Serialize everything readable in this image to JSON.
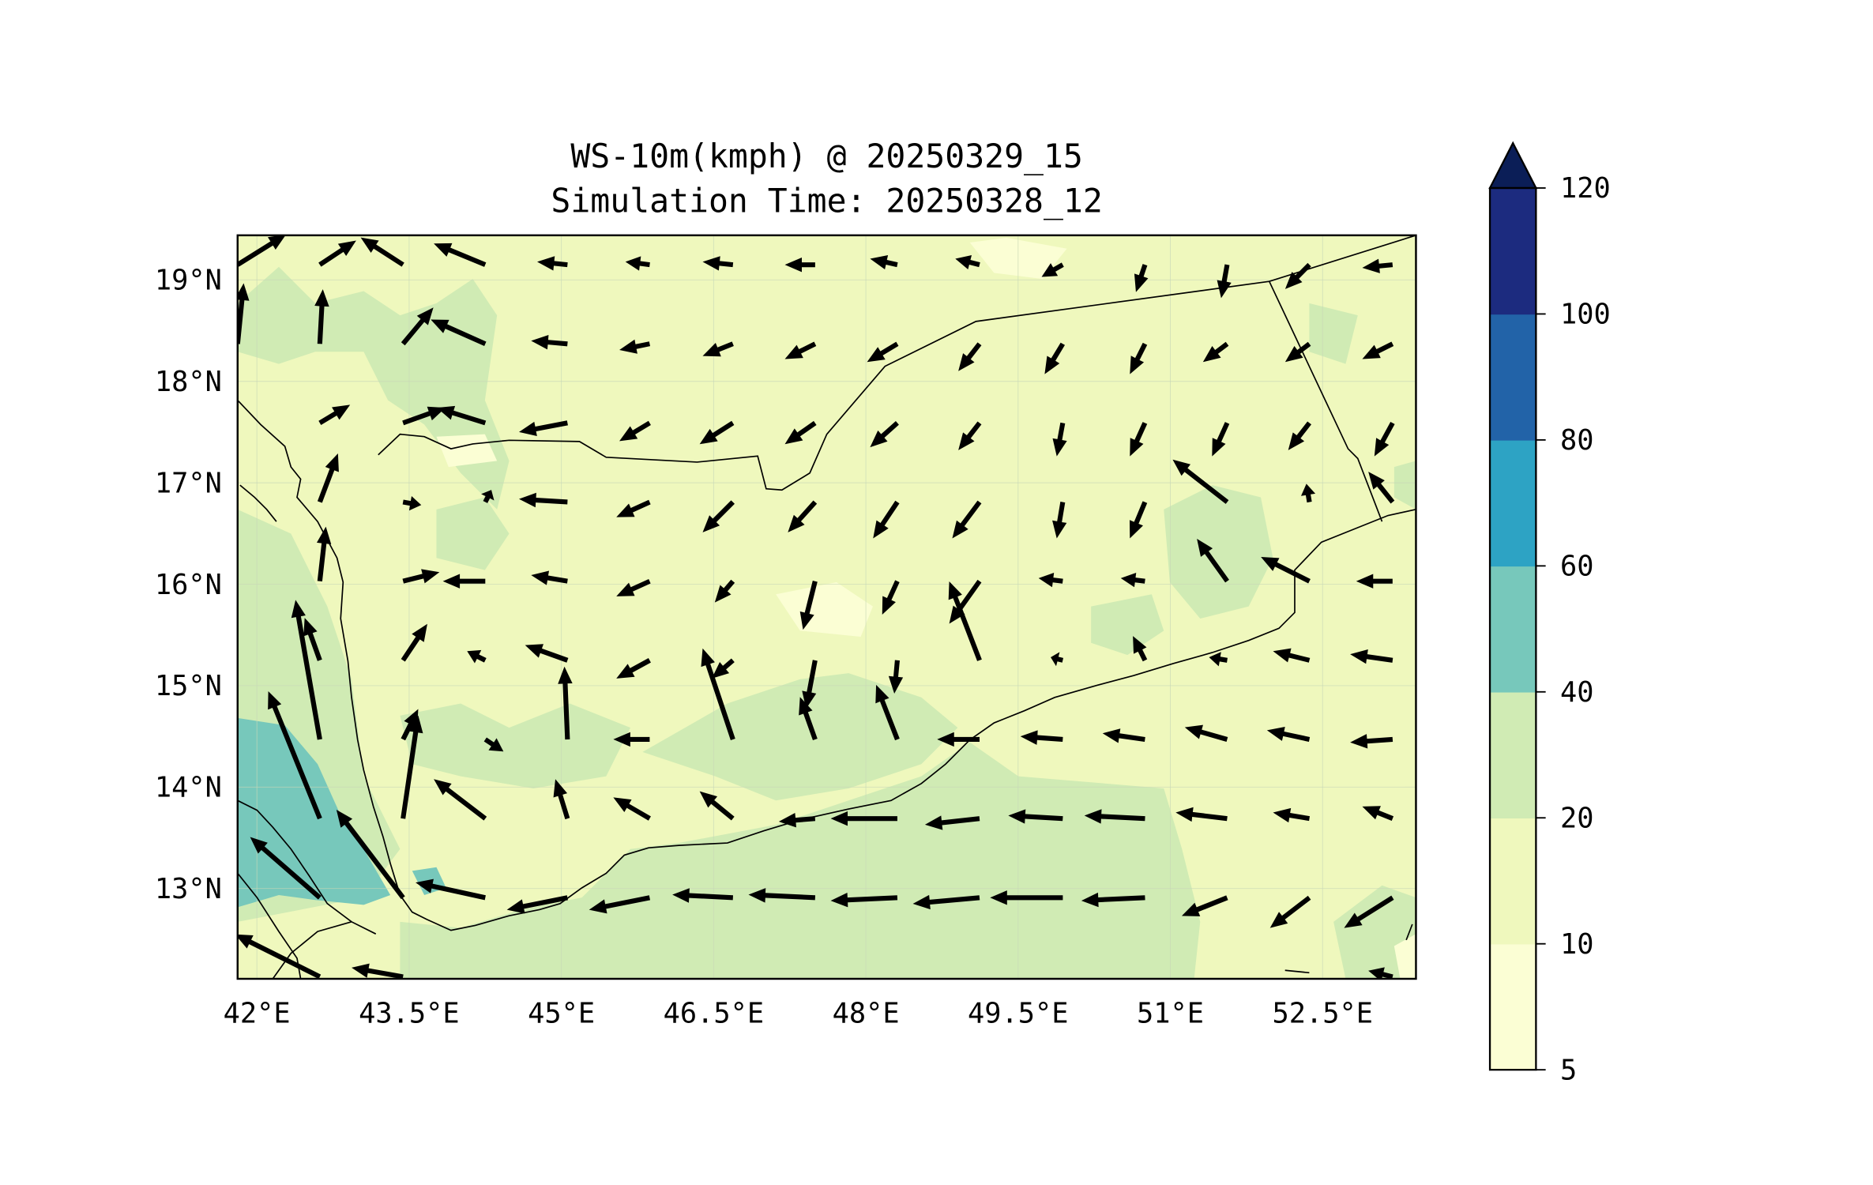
{
  "title": {
    "line1": "WS-10m(kmph) @ 20250329_15",
    "line2": "Simulation Time: 20250328_12"
  },
  "axes": {
    "lon_ticks": [
      {
        "value": 42.0,
        "label": "42°E"
      },
      {
        "value": 43.5,
        "label": "43.5°E"
      },
      {
        "value": 45.0,
        "label": "45°E"
      },
      {
        "value": 46.5,
        "label": "46.5°E"
      },
      {
        "value": 48.0,
        "label": "48°E"
      },
      {
        "value": 49.5,
        "label": "49.5°E"
      },
      {
        "value": 51.0,
        "label": "51°E"
      },
      {
        "value": 52.5,
        "label": "52.5°E"
      }
    ],
    "lat_ticks": [
      {
        "value": 19,
        "label": "19°N"
      },
      {
        "value": 18,
        "label": "18°N"
      },
      {
        "value": 17,
        "label": "17°N"
      },
      {
        "value": 16,
        "label": "16°N"
      },
      {
        "value": 15,
        "label": "15°N"
      },
      {
        "value": 14,
        "label": "14°N"
      },
      {
        "value": 13,
        "label": "13°N"
      }
    ],
    "lon_range": [
      41.81,
      53.42
    ],
    "lat_range": [
      12.11,
      19.44
    ]
  },
  "colorbar": {
    "levels": [
      5,
      10,
      20,
      40,
      60,
      80,
      100,
      120
    ],
    "labels": [
      "5",
      "10",
      "20",
      "40",
      "60",
      "80",
      "100",
      "120"
    ],
    "colors": [
      "#fbfed4",
      "#eff8bd",
      "#d0ebb4",
      "#77c8bb",
      "#2da3c4",
      "#2263a8",
      "#1c2b7f"
    ],
    "extend_color": "#0b1e57",
    "extend": "max"
  },
  "colors": {
    "background_field": "#eff8bd",
    "light_field": "#fbfed4",
    "medium_field": "#d0ebb4",
    "strong_field": "#77c8bb",
    "arrow": "#000000"
  },
  "wind_vectors": {
    "units": "kmph",
    "grid_lons": [
      41.81,
      42.62,
      43.44,
      44.25,
      45.06,
      45.87,
      46.69,
      47.5,
      48.31,
      49.12,
      49.94,
      50.75,
      51.56,
      52.37,
      53.19
    ],
    "grid_lats": [
      19.15,
      18.37,
      17.59,
      16.81,
      16.03,
      15.25,
      14.47,
      13.69,
      12.91,
      12.13
    ],
    "uv": [
      [
        [
          16,
          10
        ],
        [
          12,
          8
        ],
        [
          -14,
          9
        ],
        [
          -17,
          7
        ],
        [
          -10,
          1
        ],
        [
          -8,
          1
        ],
        [
          -10,
          1
        ],
        [
          -10,
          0
        ],
        [
          -9,
          2
        ],
        [
          -8,
          2
        ],
        [
          -7,
          -4
        ],
        [
          -3,
          -9
        ],
        [
          -2,
          -11
        ],
        [
          -8,
          -8
        ],
        [
          -10,
          -1
        ]
      ],
      [
        [
          2,
          20
        ],
        [
          1,
          18
        ],
        [
          10,
          12
        ],
        [
          -18,
          8
        ],
        [
          -12,
          1
        ],
        [
          -10,
          -2
        ],
        [
          -10,
          -4
        ],
        [
          -10,
          -5
        ],
        [
          -10,
          -6
        ],
        [
          -7,
          -9
        ],
        [
          -6,
          -10
        ],
        [
          -5,
          -10
        ],
        [
          -8,
          -6
        ],
        [
          -8,
          -6
        ],
        [
          -10,
          -5
        ]
      ],
      [
        null,
        [
          10,
          6
        ],
        [
          14,
          5
        ],
        [
          -16,
          5
        ],
        [
          -16,
          -3
        ],
        [
          -10,
          -6
        ],
        [
          -11,
          -7
        ],
        [
          -10,
          -7
        ],
        [
          -9,
          -8
        ],
        [
          -7,
          -9
        ],
        [
          -2,
          -11
        ],
        [
          -5,
          -11
        ],
        [
          -5,
          -11
        ],
        [
          -7,
          -9
        ],
        [
          -6,
          -11
        ]
      ],
      [
        null,
        [
          6,
          16
        ],
        [
          6,
          -1
        ],
        [
          2,
          4
        ],
        [
          -16,
          1
        ],
        [
          -11,
          -5
        ],
        [
          -10,
          -10
        ],
        [
          -9,
          -10
        ],
        [
          -8,
          -12
        ],
        [
          -9,
          -12
        ],
        [
          -2,
          -12
        ],
        [
          -5,
          -12
        ],
        [
          -18,
          14
        ],
        [
          -1,
          6
        ],
        [
          -8,
          10
        ]
      ],
      [
        null,
        [
          2,
          18
        ],
        [
          12,
          3
        ],
        [
          -14,
          0
        ],
        [
          -12,
          2
        ],
        [
          -11,
          -5
        ],
        [
          -6,
          -7
        ],
        [
          -4,
          -16
        ],
        [
          -5,
          -11
        ],
        [
          -10,
          -14
        ],
        [
          -8,
          1
        ],
        [
          -8,
          1
        ],
        [
          -10,
          14
        ],
        [
          -16,
          8
        ],
        [
          -12,
          0
        ]
      ],
      [
        null,
        [
          -5,
          14
        ],
        [
          8,
          12
        ],
        [
          -6,
          3
        ],
        [
          -14,
          5
        ],
        [
          -11,
          -6
        ],
        [
          -7,
          -6
        ],
        [
          -3,
          -16
        ],
        [
          -1,
          -11
        ],
        [
          -10,
          26
        ],
        [
          -4,
          1
        ],
        [
          -4,
          8
        ],
        [
          -6,
          1
        ],
        [
          -12,
          3
        ],
        [
          -14,
          2
        ]
      ],
      [
        null,
        [
          -8,
          46
        ],
        [
          5,
          10
        ],
        [
          6,
          -4
        ],
        [
          -1,
          24
        ],
        [
          -12,
          0
        ],
        [
          -10,
          30
        ],
        [
          -5,
          14
        ],
        [
          -7,
          18
        ],
        [
          -14,
          0
        ],
        [
          -14,
          1
        ],
        [
          -14,
          2
        ],
        [
          -14,
          4
        ],
        [
          -14,
          3
        ],
        [
          -14,
          -1
        ]
      ],
      [
        null,
        [
          -17,
          42
        ],
        [
          5,
          34
        ],
        [
          -17,
          13
        ],
        [
          -4,
          13
        ],
        [
          -12,
          7
        ],
        [
          -11,
          9
        ],
        [
          -12,
          -1
        ],
        [
          -22,
          0
        ],
        [
          -18,
          -2
        ],
        [
          -18,
          1
        ],
        [
          -20,
          1
        ],
        [
          -17,
          2
        ],
        [
          -12,
          2
        ],
        [
          -10,
          4
        ]
      ],
      [
        null,
        [
          -23,
          20
        ],
        [
          -22,
          29
        ],
        [
          -23,
          5
        ],
        [
          -20,
          -4
        ],
        [
          -20,
          -4
        ],
        [
          -20,
          1
        ],
        [
          -22,
          1
        ],
        [
          -22,
          -1
        ],
        [
          -22,
          -2
        ],
        [
          -24,
          0
        ],
        [
          -21,
          -1
        ],
        [
          -15,
          -6
        ],
        [
          -13,
          -10
        ],
        [
          -16,
          -10
        ]
      ],
      [
        null,
        [
          -28,
          14
        ],
        [
          -17,
          3
        ],
        null,
        null,
        null,
        null,
        null,
        null,
        null,
        null,
        null,
        null,
        null,
        [
          -8,
          2
        ]
      ]
    ]
  }
}
